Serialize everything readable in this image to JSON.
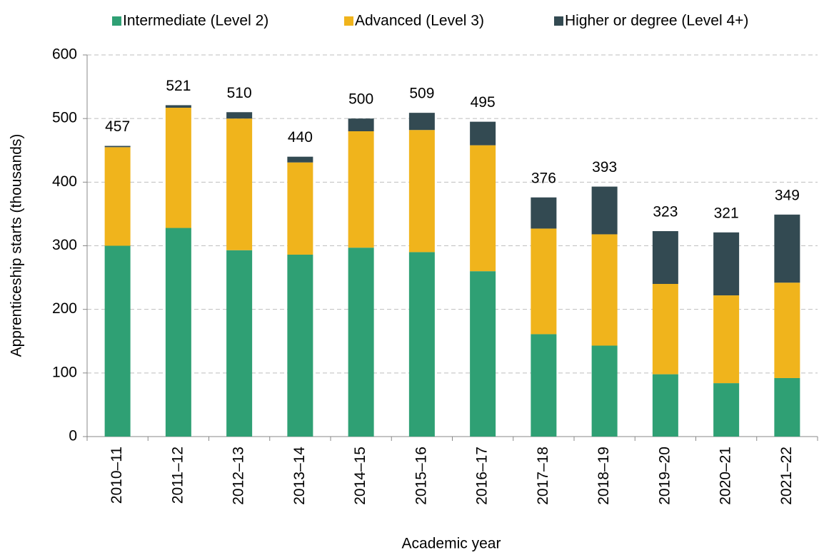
{
  "chart_data": {
    "type": "stacked_bar",
    "x_label": "Academic year",
    "y_label": "Apprenticeship starts (thousands)",
    "categories": [
      "2010–11",
      "2011–12",
      "2012–13",
      "2013–14",
      "2014–15",
      "2015–16",
      "2016–17",
      "2017–18",
      "2018–19",
      "2019–20",
      "2020–21",
      "2021–22"
    ],
    "series": [
      {
        "name": "Intermediate (Level 2)",
        "color": "#2fa074",
        "values": [
          300,
          328,
          293,
          286,
          297,
          290,
          260,
          161,
          143,
          98,
          84,
          92
        ]
      },
      {
        "name": "Advanced (Level 3)",
        "color": "#f0b41c",
        "values": [
          155,
          189,
          207,
          145,
          183,
          192,
          198,
          166,
          175,
          142,
          138,
          150
        ]
      },
      {
        "name": "Higher or degree (Level 4+)",
        "color": "#334a52",
        "values": [
          2,
          4,
          10,
          9,
          20,
          27,
          37,
          49,
          75,
          83,
          99,
          107
        ]
      }
    ],
    "totals": [
      457,
      521,
      510,
      440,
      500,
      509,
      495,
      376,
      393,
      323,
      321,
      349
    ],
    "ylim": [
      0,
      600
    ],
    "yticks": [
      0,
      100,
      200,
      300,
      400,
      500,
      600
    ],
    "grid": true,
    "legend": "top"
  }
}
